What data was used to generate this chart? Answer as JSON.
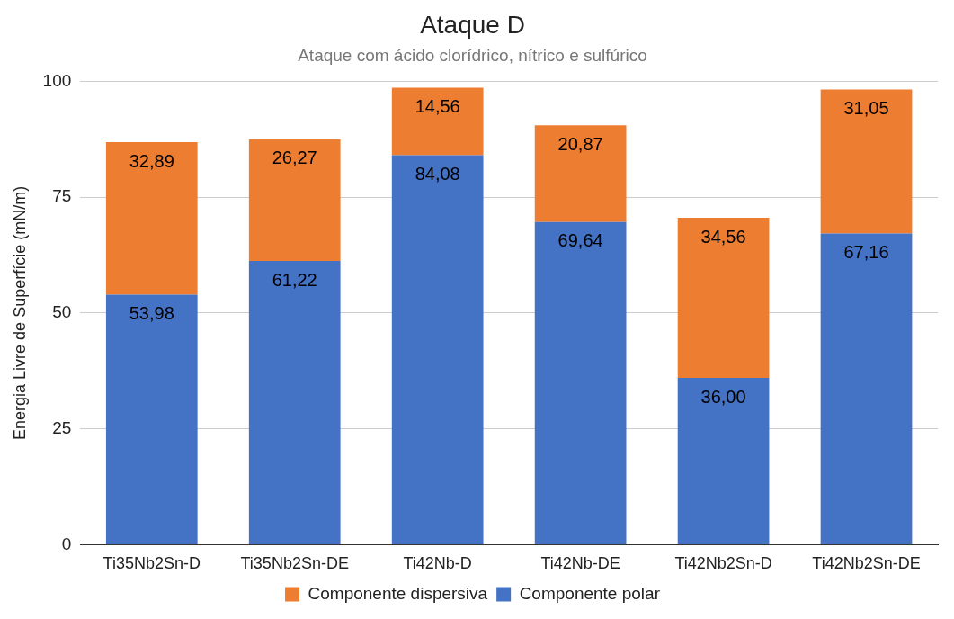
{
  "chart_data": {
    "type": "bar",
    "title": "Ataque D",
    "subtitle": "Ataque com ácido clorídrico, nítrico e sulfúrico",
    "ylabel": "Energia Livre de Superfície (mN/m)",
    "categories": [
      "Ti35Nb2Sn-D",
      "Ti35Nb2Sn-DE",
      "Ti42Nb-D",
      "Ti42Nb-DE",
      "Ti42Nb2Sn-D",
      "Ti42Nb2Sn-DE"
    ],
    "stacked": true,
    "series": [
      {
        "name": "Componente polar",
        "color": "#4472c4",
        "values": [
          53.98,
          61.22,
          84.08,
          69.64,
          36.0,
          67.16
        ],
        "value_labels": [
          "53,98",
          "61,22",
          "84,08",
          "69,64",
          "36,00",
          "67,16"
        ]
      },
      {
        "name": "Componente dispersiva",
        "color": "#ed7d31",
        "values": [
          32.89,
          26.27,
          14.56,
          20.87,
          34.56,
          31.05
        ],
        "value_labels": [
          "32,89",
          "26,27",
          "14,56",
          "20,87",
          "34,56",
          "31,05"
        ]
      }
    ],
    "ylim": [
      0,
      100
    ],
    "yticks": [
      0,
      25,
      50,
      75,
      100
    ],
    "grid": "y",
    "legend": "bottom"
  }
}
